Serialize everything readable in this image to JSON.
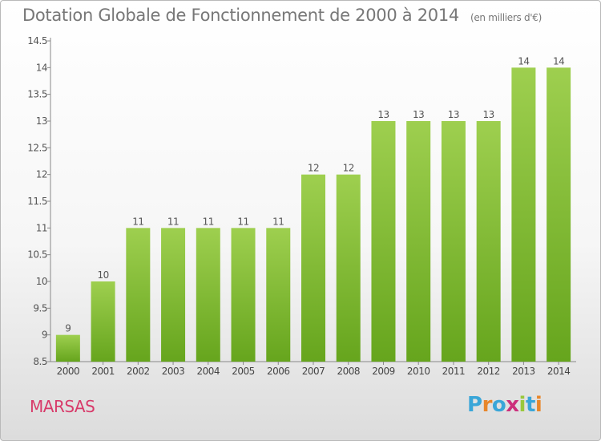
{
  "header": {
    "title": "Dotation Globale de Fonctionnement de 2000 à 2014",
    "unit": "(en milliers d'€)"
  },
  "footer": {
    "commune": "MARSAS",
    "logo": "Proxiti"
  },
  "colors": {
    "bar_top": "#9ecf4f",
    "bar_bottom": "#66a51d",
    "commune": "#d83a6a",
    "logo_letters": [
      "#3aa6d8",
      "#e8862a",
      "#3aa6d8",
      "#cc2f7c",
      "#9ac83c",
      "#3aa6d8",
      "#e8862a"
    ]
  },
  "chart_data": {
    "type": "bar",
    "categories": [
      "2000",
      "2001",
      "2002",
      "2003",
      "2004",
      "2005",
      "2006",
      "2007",
      "2008",
      "2009",
      "2010",
      "2011",
      "2012",
      "2013",
      "2014"
    ],
    "values": [
      9,
      10,
      11,
      11,
      11,
      11,
      11,
      12,
      12,
      13,
      13,
      13,
      13,
      14,
      14
    ],
    "ylim": [
      8.5,
      14.5
    ],
    "yticks": [
      "8.5",
      "9",
      "9.5",
      "10",
      "10.5",
      "11",
      "11.5",
      "12",
      "12.5",
      "13",
      "13.5",
      "14",
      "14.5"
    ],
    "grid": false,
    "title": "Dotation Globale de Fonctionnement de 2000 à 2014",
    "xlabel": "",
    "ylabel": ""
  }
}
